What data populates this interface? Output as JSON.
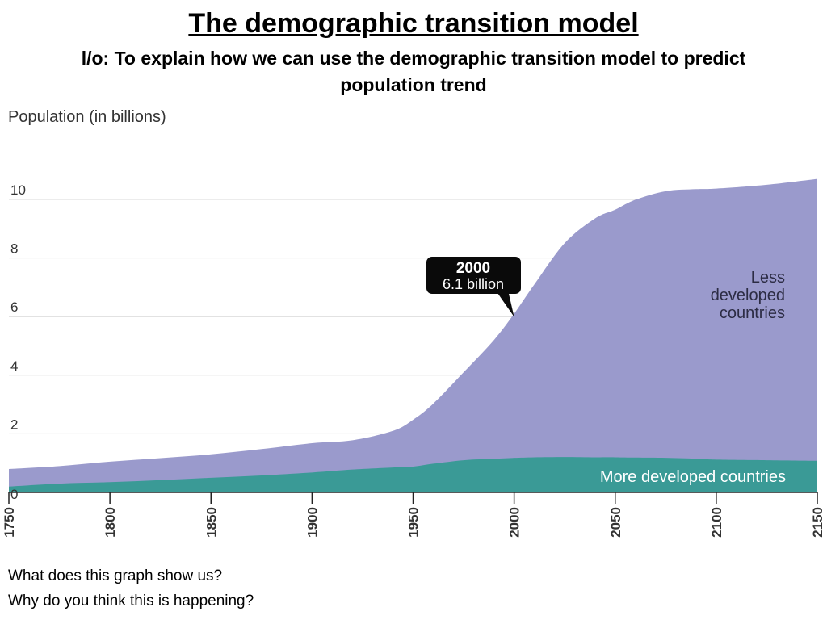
{
  "page": {
    "title": "The demographic transition model",
    "subtitle": "l/o: To explain how we can use the demographic transition model to predict population trend",
    "questions": [
      "What does this graph show us?",
      "Why do you think this is happening?"
    ]
  },
  "chart_data": {
    "type": "area",
    "ylabel": "Population (in billions)",
    "xlabel": "",
    "xlim": [
      1750,
      2150
    ],
    "ylim": [
      0,
      10.8
    ],
    "x_ticks": [
      1750,
      1800,
      1850,
      1900,
      1950,
      2000,
      2050,
      2100,
      2150
    ],
    "y_ticks": [
      0,
      2,
      4,
      6,
      8,
      10
    ],
    "x": [
      1750,
      1775,
      1800,
      1825,
      1850,
      1875,
      1900,
      1920,
      1940,
      1950,
      1960,
      1975,
      1990,
      2000,
      2010,
      2025,
      2040,
      2050,
      2060,
      2075,
      2090,
      2100,
      2125,
      2150
    ],
    "series": [
      {
        "name": "More developed countries",
        "color": "#3a9a96",
        "values": [
          0.2,
          0.3,
          0.35,
          0.42,
          0.5,
          0.58,
          0.68,
          0.78,
          0.85,
          0.88,
          0.98,
          1.1,
          1.15,
          1.18,
          1.2,
          1.21,
          1.2,
          1.2,
          1.19,
          1.18,
          1.15,
          1.12,
          1.1,
          1.08
        ]
      },
      {
        "name": "Less developed countries",
        "color": "#9a9acc",
        "values": [
          0.6,
          0.6,
          0.7,
          0.75,
          0.8,
          0.9,
          1.0,
          1.0,
          1.25,
          1.6,
          2.05,
          3.0,
          4.05,
          4.92,
          5.9,
          7.3,
          8.15,
          8.45,
          8.8,
          9.1,
          9.2,
          9.25,
          9.4,
          9.62
        ]
      }
    ],
    "annotation": {
      "x": 2000,
      "y": 6.1,
      "line1": "2000",
      "line2": "6.1 billion"
    },
    "series_labels": {
      "less": [
        "Less",
        "developed",
        "countries"
      ],
      "more": "More developed countries"
    },
    "grid": true
  }
}
